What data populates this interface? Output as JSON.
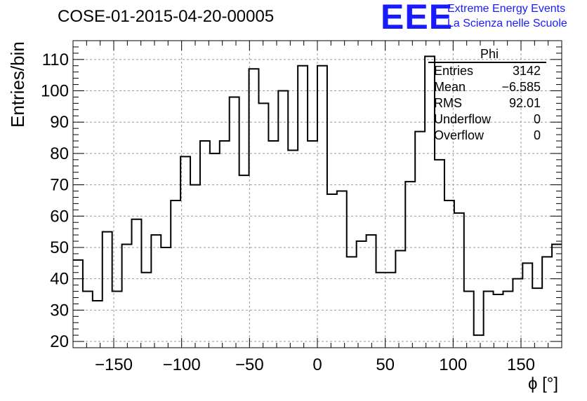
{
  "chart_data": {
    "type": "histogram",
    "title": "COSE-01-2015-04-20-00005",
    "xlabel": "ϕ [°]",
    "ylabel": "Entries/bin",
    "xlim": [
      -180,
      180
    ],
    "ylim": [
      18,
      116
    ],
    "grid": true,
    "x_ticks": [
      -150,
      -100,
      -50,
      0,
      50,
      100,
      150
    ],
    "x_tick_labels": [
      "−150",
      "−100",
      "−50",
      "0",
      "50",
      "100",
      "150"
    ],
    "y_ticks": [
      20,
      30,
      40,
      50,
      60,
      70,
      80,
      90,
      100,
      110
    ],
    "y_tick_labels": [
      "20",
      "30",
      "40",
      "50",
      "60",
      "70",
      "80",
      "90",
      "100",
      "110"
    ],
    "bin_edges_start": -180,
    "bin_width": 7.2,
    "values": [
      46,
      36,
      33,
      55,
      36,
      51,
      59,
      42,
      54,
      50,
      65,
      79,
      70,
      84,
      80,
      84,
      98,
      73,
      107,
      96,
      84,
      100,
      81,
      108,
      84,
      108,
      67,
      68,
      47,
      52,
      54,
      42,
      42,
      49,
      71,
      87,
      111,
      78,
      65,
      61,
      36,
      22,
      36,
      35,
      36,
      40,
      45,
      37,
      47,
      51
    ],
    "stats_box": {
      "name": "Phi",
      "rows": [
        {
          "label": "Entries",
          "value": "3142"
        },
        {
          "label": "Mean",
          "value": "−6.585"
        },
        {
          "label": "RMS",
          "value": "92.01"
        },
        {
          "label": "Underflow",
          "value": "0"
        },
        {
          "label": "Overflow",
          "value": "0"
        }
      ]
    }
  },
  "logo": {
    "mark": "EEE",
    "line1": "Extreme Energy Events",
    "line2": "La Scienza nelle Scuole"
  },
  "colors": {
    "histogram_line": "#000000",
    "grid": "#999999",
    "logo": "#1a1aff"
  }
}
